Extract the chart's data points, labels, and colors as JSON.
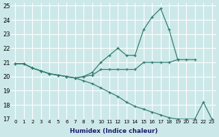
{
  "xlabel": "Humidex (Indice chaleur)",
  "ylabel": "",
  "bg_color": "#cde8e8",
  "grid_color": "#ffffff",
  "line_color": "#2e7d6e",
  "xlim": [
    -0.5,
    23.5
  ],
  "ylim": [
    17,
    25.2
  ],
  "xticks": [
    0,
    1,
    2,
    3,
    4,
    5,
    6,
    7,
    8,
    9,
    10,
    11,
    12,
    13,
    14,
    15,
    16,
    17,
    18,
    19,
    20,
    21,
    22,
    23
  ],
  "yticks": [
    17,
    18,
    19,
    20,
    21,
    22,
    23,
    24,
    25
  ],
  "series": [
    [
      20.9,
      20.9,
      20.6,
      20.4,
      20.2,
      20.1,
      20.0,
      19.9,
      20.0,
      20.1,
      20.5,
      20.5,
      20.5,
      20.5,
      20.5,
      21.0,
      21.0,
      21.0,
      21.0,
      21.2,
      21.2,
      21.2,
      null,
      null
    ],
    [
      20.9,
      20.9,
      20.6,
      20.4,
      20.2,
      20.1,
      20.0,
      19.9,
      20.0,
      20.3,
      21.0,
      21.5,
      22.0,
      21.5,
      21.5,
      23.3,
      24.2,
      24.8,
      23.3,
      21.2,
      null,
      null,
      null,
      null
    ],
    [
      20.9,
      20.9,
      20.6,
      20.4,
      20.2,
      20.1,
      20.0,
      19.9,
      19.7,
      19.5,
      19.2,
      18.9,
      18.6,
      18.2,
      17.9,
      17.7,
      17.5,
      17.3,
      17.1,
      17.0,
      17.0,
      17.0,
      18.2,
      17.0
    ]
  ]
}
